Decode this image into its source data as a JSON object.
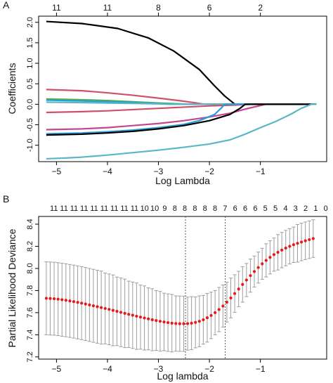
{
  "chart_data": [
    {
      "panel_label": "A",
      "type": "line",
      "xlabel": "Log Lambda",
      "ylabel": "Coefficients",
      "xlim": [
        -5.35,
        0.3
      ],
      "ylim": [
        -1.4,
        2.15
      ],
      "x_ticks": [
        -5,
        -4,
        -3,
        -2,
        -1
      ],
      "y_ticks": [
        -1.0,
        -0.5,
        0.0,
        0.5,
        1.0,
        1.5,
        2.0
      ],
      "y_tick_labels": [
        "-1.0",
        "-0.5",
        "0.0",
        "0.5",
        "1.0",
        "1.5",
        "2.0"
      ],
      "top_ticks": [
        {
          "x": -5,
          "label": "11"
        },
        {
          "x": -4,
          "label": "11"
        },
        {
          "x": -3,
          "label": "8"
        },
        {
          "x": -2,
          "label": "6"
        },
        {
          "x": -1,
          "label": "2"
        }
      ],
      "series": [
        {
          "color": "#000000",
          "points": [
            [
              -5.2,
              2.02
            ],
            [
              -4.5,
              1.97
            ],
            [
              -3.8,
              1.85
            ],
            [
              -3.2,
              1.62
            ],
            [
              -2.7,
              1.3
            ],
            [
              -2.2,
              0.85
            ],
            [
              -1.9,
              0.45
            ],
            [
              -1.7,
              0.2
            ],
            [
              -1.55,
              0.05
            ],
            [
              -1.5,
              0.0
            ],
            [
              0.1,
              0.0
            ]
          ]
        },
        {
          "color": "#d0506b",
          "points": [
            [
              -5.2,
              0.36
            ],
            [
              -4.5,
              0.33
            ],
            [
              -4.0,
              0.28
            ],
            [
              -3.5,
              0.22
            ],
            [
              -3.0,
              0.15
            ],
            [
              -2.6,
              0.09
            ],
            [
              -2.3,
              0.04
            ],
            [
              -2.1,
              0.0
            ],
            [
              0.1,
              0.0
            ]
          ]
        },
        {
          "color": "#4cae4c",
          "points": [
            [
              -5.2,
              0.13
            ],
            [
              -4.5,
              0.11
            ],
            [
              -4.0,
              0.09
            ],
            [
              -3.5,
              0.06
            ],
            [
              -3.0,
              0.03
            ],
            [
              -2.6,
              0.01
            ],
            [
              -2.4,
              0.0
            ],
            [
              0.1,
              0.0
            ]
          ]
        },
        {
          "color": "#2a9ed8",
          "points": [
            [
              -5.2,
              0.1
            ],
            [
              -4.5,
              0.08
            ],
            [
              -4.0,
              0.06
            ],
            [
              -3.5,
              0.04
            ],
            [
              -3.0,
              0.02
            ],
            [
              -2.7,
              0.0
            ],
            [
              0.1,
              0.0
            ]
          ]
        },
        {
          "color": "#5bb7c6",
          "points": [
            [
              -5.2,
              0.05
            ],
            [
              -4.5,
              0.04
            ],
            [
              -4.0,
              0.03
            ],
            [
              -3.5,
              0.02
            ],
            [
              -3.0,
              0.01
            ],
            [
              -2.8,
              0.0
            ],
            [
              0.1,
              0.0
            ]
          ]
        },
        {
          "color": "#d0506b",
          "points": [
            [
              -5.2,
              -0.2
            ],
            [
              -4.5,
              -0.18
            ],
            [
              -4.0,
              -0.16
            ],
            [
              -3.5,
              -0.13
            ],
            [
              -3.0,
              -0.1
            ],
            [
              -2.5,
              -0.07
            ],
            [
              -2.0,
              -0.04
            ],
            [
              -1.5,
              -0.02
            ],
            [
              -1.2,
              0.0
            ],
            [
              0.1,
              0.0
            ]
          ]
        },
        {
          "color": "#c4478f",
          "points": [
            [
              -5.2,
              -0.62
            ],
            [
              -4.5,
              -0.6
            ],
            [
              -4.0,
              -0.57
            ],
            [
              -3.5,
              -0.52
            ],
            [
              -3.0,
              -0.47
            ],
            [
              -2.5,
              -0.4
            ],
            [
              -2.0,
              -0.31
            ],
            [
              -1.6,
              -0.22
            ],
            [
              -1.3,
              -0.12
            ],
            [
              -1.0,
              -0.03
            ],
            [
              -0.9,
              0.0
            ],
            [
              0.1,
              0.0
            ]
          ]
        },
        {
          "color": "#2a9ed8",
          "points": [
            [
              -5.2,
              -0.72
            ],
            [
              -4.5,
              -0.7
            ],
            [
              -4.0,
              -0.67
            ],
            [
              -3.5,
              -0.63
            ],
            [
              -3.0,
              -0.57
            ],
            [
              -2.5,
              -0.49
            ],
            [
              -2.2,
              -0.4
            ],
            [
              -1.9,
              -0.25
            ],
            [
              -1.75,
              -0.07
            ],
            [
              -1.7,
              0.0
            ],
            [
              0.1,
              0.0
            ]
          ]
        },
        {
          "color": "#000000",
          "points": [
            [
              -5.2,
              -0.75
            ],
            [
              -4.5,
              -0.73
            ],
            [
              -4.0,
              -0.7
            ],
            [
              -3.5,
              -0.66
            ],
            [
              -3.0,
              -0.6
            ],
            [
              -2.5,
              -0.52
            ],
            [
              -2.0,
              -0.4
            ],
            [
              -1.6,
              -0.25
            ],
            [
              -1.4,
              -0.1
            ],
            [
              -1.3,
              0.0
            ],
            [
              0.1,
              0.0
            ]
          ]
        },
        {
          "color": "#5bb7c6",
          "points": [
            [
              -5.2,
              -1.33
            ],
            [
              -4.8,
              -1.31
            ],
            [
              -4.5,
              -1.29
            ],
            [
              -4.0,
              -1.24
            ],
            [
              -3.5,
              -1.18
            ],
            [
              -3.0,
              -1.12
            ],
            [
              -2.5,
              -1.05
            ],
            [
              -2.0,
              -0.97
            ],
            [
              -1.6,
              -0.87
            ],
            [
              -1.3,
              -0.73
            ],
            [
              -1.0,
              -0.57
            ],
            [
              -0.7,
              -0.42
            ],
            [
              -0.4,
              -0.24
            ],
            [
              -0.2,
              -0.1
            ],
            [
              0.0,
              0.0
            ],
            [
              0.1,
              0.0
            ]
          ]
        }
      ]
    },
    {
      "panel_label": "B",
      "type": "scatter",
      "xlabel": "Log lambda",
      "ylabel": "Partial Likelihood Deviance",
      "xlim": [
        -5.35,
        0.3
      ],
      "ylim": [
        7.18,
        8.47
      ],
      "x_ticks": [
        -5,
        -4,
        -3,
        -2,
        -1
      ],
      "y_ticks": [
        7.2,
        7.4,
        7.6,
        7.8,
        8.0,
        8.2,
        8.4
      ],
      "y_tick_labels": [
        "7.2",
        "7.4",
        "7.6",
        "7.8",
        "8.0",
        "8.2",
        "8.4"
      ],
      "top_labels": [
        "11",
        "11",
        "11",
        "11",
        "11",
        "11",
        "11",
        "11",
        "11",
        "10",
        "10",
        "9",
        "8",
        "8",
        "8",
        "8",
        "8",
        "7",
        "6",
        "6",
        "6",
        "5",
        "5",
        "4",
        "3",
        "2",
        "1",
        "0"
      ],
      "top_x_start": -5.05,
      "top_x_step": 0.1975,
      "vlines": [
        -2.47,
        -1.69
      ],
      "point_color": "#e41a1c",
      "errorbar_color": "#9e9e9e",
      "x": [
        -5.2,
        -5.123,
        -5.046,
        -4.969,
        -4.892,
        -4.815,
        -4.738,
        -4.661,
        -4.584,
        -4.507,
        -4.43,
        -4.353,
        -4.276,
        -4.199,
        -4.122,
        -4.045,
        -3.968,
        -3.891,
        -3.814,
        -3.737,
        -3.66,
        -3.583,
        -3.506,
        -3.429,
        -3.352,
        -3.275,
        -3.198,
        -3.121,
        -3.044,
        -2.967,
        -2.89,
        -2.813,
        -2.736,
        -2.659,
        -2.582,
        -2.505,
        -2.428,
        -2.351,
        -2.274,
        -2.197,
        -2.12,
        -2.043,
        -1.966,
        -1.889,
        -1.812,
        -1.735,
        -1.658,
        -1.581,
        -1.504,
        -1.427,
        -1.35,
        -1.273,
        -1.196,
        -1.119,
        -1.042,
        -0.965,
        -0.888,
        -0.811,
        -0.734,
        -0.657,
        -0.58,
        -0.503,
        -0.426,
        -0.349,
        -0.272,
        -0.195,
        -0.118,
        -0.041,
        0.036
      ],
      "y": [
        7.73,
        7.728,
        7.726,
        7.722,
        7.717,
        7.712,
        7.706,
        7.7,
        7.693,
        7.686,
        7.678,
        7.67,
        7.662,
        7.654,
        7.646,
        7.638,
        7.63,
        7.621,
        7.612,
        7.603,
        7.594,
        7.585,
        7.577,
        7.568,
        7.56,
        7.552,
        7.544,
        7.536,
        7.529,
        7.522,
        7.516,
        7.51,
        7.505,
        7.502,
        7.5,
        7.5,
        7.501,
        7.505,
        7.512,
        7.522,
        7.536,
        7.554,
        7.575,
        7.6,
        7.628,
        7.66,
        7.695,
        7.733,
        7.773,
        7.814,
        7.855,
        7.895,
        7.935,
        7.972,
        8.008,
        8.042,
        8.073,
        8.1,
        8.125,
        8.146,
        8.166,
        8.184,
        8.2,
        8.214,
        8.227,
        8.239,
        8.25,
        8.26,
        8.27
      ],
      "err": [
        0.33,
        0.33,
        0.33,
        0.33,
        0.33,
        0.33,
        0.33,
        0.33,
        0.33,
        0.33,
        0.33,
        0.33,
        0.33,
        0.33,
        0.33,
        0.32,
        0.32,
        0.32,
        0.31,
        0.31,
        0.31,
        0.3,
        0.3,
        0.3,
        0.29,
        0.29,
        0.28,
        0.28,
        0.27,
        0.27,
        0.26,
        0.26,
        0.26,
        0.25,
        0.25,
        0.25,
        0.24,
        0.24,
        0.23,
        0.23,
        0.22,
        0.22,
        0.21,
        0.2,
        0.2,
        0.19,
        0.18,
        0.18,
        0.17,
        0.16,
        0.16,
        0.15,
        0.15,
        0.14,
        0.14,
        0.14,
        0.15,
        0.15,
        0.15,
        0.16,
        0.16,
        0.16,
        0.16,
        0.16,
        0.17,
        0.17,
        0.17,
        0.17,
        0.17
      ]
    }
  ]
}
